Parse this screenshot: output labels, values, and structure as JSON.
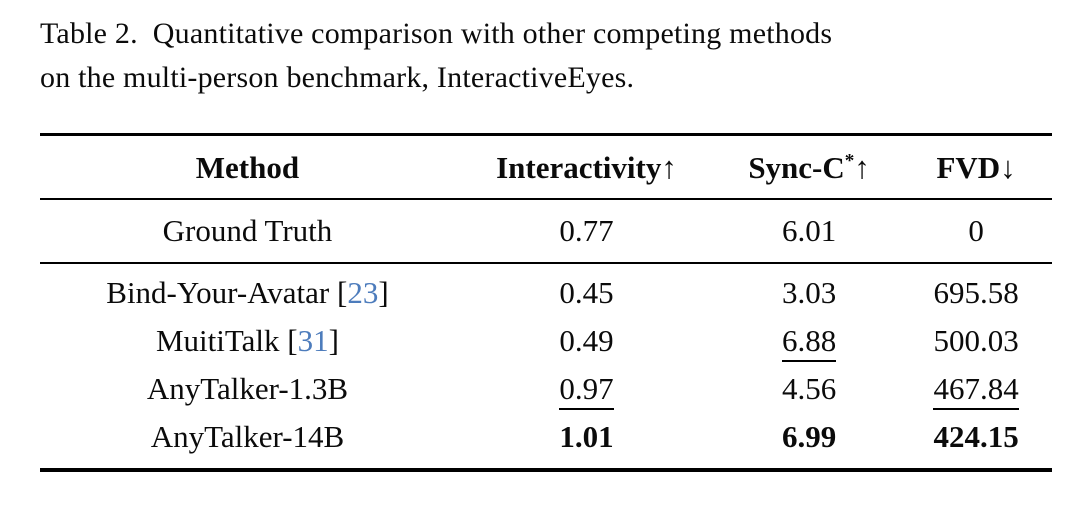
{
  "caption": {
    "label": "Table 2.",
    "line1": "Quantitative comparison with other competing methods",
    "line2": "on the multi-person benchmark, InteractiveEyes."
  },
  "colors": {
    "citation": "#4d7cbc",
    "rule": "#000000",
    "text": "#0b0b0b"
  },
  "table": {
    "header": [
      {
        "label": "Method"
      },
      {
        "label": "Interactivity",
        "arrow": "↑"
      },
      {
        "label": "Sync-C",
        "sup": "*",
        "arrow": "↑"
      },
      {
        "label": "FVD",
        "arrow": "↓"
      }
    ],
    "groups": [
      {
        "rows": [
          {
            "method": {
              "name": "Ground Truth"
            },
            "values": [
              {
                "text": "0.77"
              },
              {
                "text": "6.01"
              },
              {
                "text": "0"
              }
            ]
          }
        ]
      },
      {
        "rows": [
          {
            "method": {
              "name": "Bind-Your-Avatar",
              "citation": "23"
            },
            "values": [
              {
                "text": "0.45"
              },
              {
                "text": "3.03"
              },
              {
                "text": "695.58"
              }
            ]
          },
          {
            "method": {
              "name": "MuitiTalk",
              "citation": "31"
            },
            "values": [
              {
                "text": "0.49"
              },
              {
                "text": "6.88",
                "underline": true
              },
              {
                "text": "500.03"
              }
            ]
          },
          {
            "method": {
              "name": "AnyTalker-1.3B"
            },
            "values": [
              {
                "text": "0.97",
                "underline": true
              },
              {
                "text": "4.56"
              },
              {
                "text": "467.84",
                "underline": true
              }
            ]
          },
          {
            "method": {
              "name": "AnyTalker-14B"
            },
            "values": [
              {
                "text": "1.01",
                "bold": true
              },
              {
                "text": "6.99",
                "bold": true
              },
              {
                "text": "424.15",
                "bold": true
              }
            ]
          }
        ]
      }
    ]
  }
}
